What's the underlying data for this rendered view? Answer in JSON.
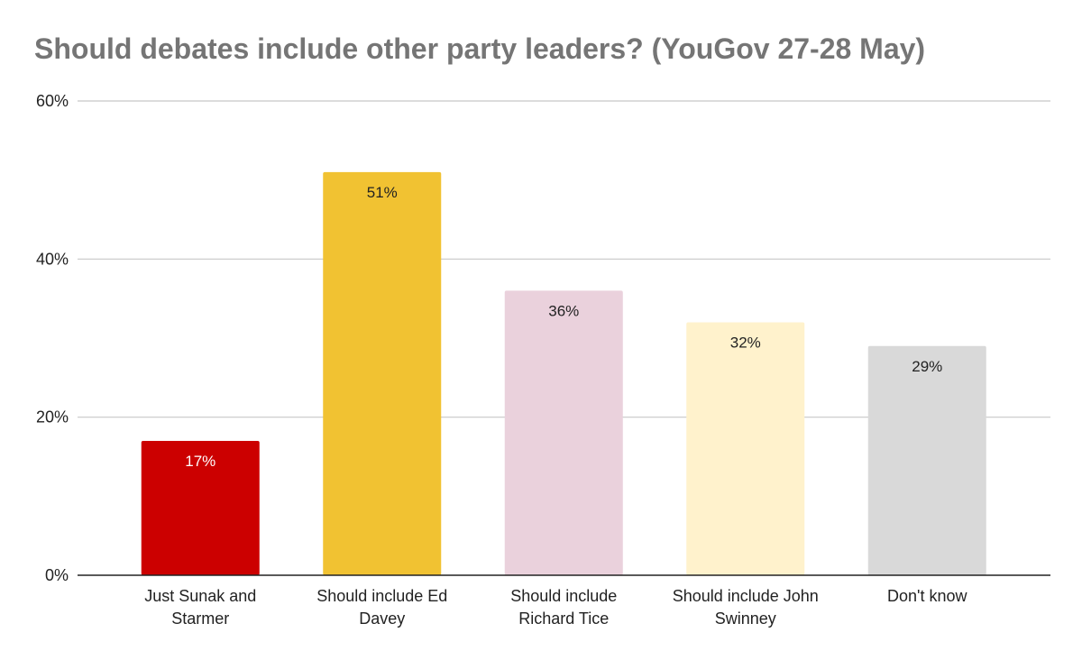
{
  "chart_data": {
    "type": "bar",
    "title": "Should debates include other party leaders? (YouGov 27-28 May)",
    "categories": [
      [
        "Just Sunak and",
        "Starmer"
      ],
      [
        "Should include Ed",
        "Davey"
      ],
      [
        "Should include",
        "Richard Tice"
      ],
      [
        "Should include John",
        "Swinney"
      ],
      [
        "Don't know"
      ]
    ],
    "values": [
      17,
      51,
      36,
      32,
      29
    ],
    "data_labels": [
      "17%",
      "51%",
      "36%",
      "32%",
      "29%"
    ],
    "colors": [
      "#cc0000",
      "#f1c232",
      "#ead1dc",
      "#fff2cc",
      "#d9d9d9"
    ],
    "label_colors": [
      "#ffffff",
      "#222222",
      "#222222",
      "#222222",
      "#222222"
    ],
    "ylim": [
      0,
      60
    ],
    "yticks": [
      0,
      20,
      40,
      60
    ],
    "ytick_labels": [
      "0%",
      "20%",
      "40%",
      "60%"
    ],
    "grid": true,
    "legend": "none",
    "xlabel": "",
    "ylabel": ""
  }
}
